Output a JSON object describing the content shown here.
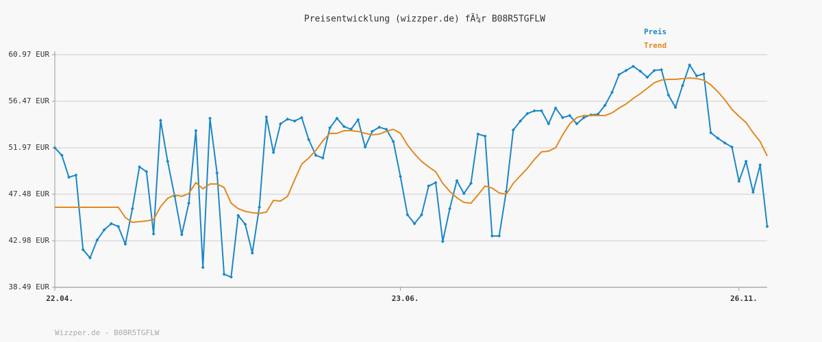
{
  "chart_data": {
    "type": "line",
    "title": "Preisentwicklung (wizzper.de) fÃ¼r B08R5TGFLW",
    "footer": "Wizzper.de - B08R5TGFLW",
    "categories": [
      "22.04.",
      null,
      null,
      null,
      null,
      null,
      null,
      null,
      null,
      null,
      null,
      null,
      null,
      null,
      null,
      null,
      null,
      null,
      null,
      null,
      null,
      null,
      null,
      null,
      null,
      null,
      null,
      null,
      null,
      null,
      null,
      null,
      null,
      null,
      null,
      null,
      null,
      null,
      null,
      null,
      null,
      null,
      null,
      null,
      null,
      null,
      null,
      null,
      null,
      "23.06.",
      null,
      null,
      null,
      null,
      null,
      null,
      null,
      null,
      null,
      null,
      null,
      null,
      null,
      null,
      null,
      null,
      null,
      null,
      null,
      null,
      null,
      null,
      null,
      null,
      null,
      null,
      null,
      null,
      null,
      null,
      null,
      null,
      null,
      null,
      null,
      null,
      null,
      null,
      null,
      null,
      null,
      null,
      null,
      null,
      null,
      null,
      null,
      "26.11.",
      null,
      null,
      null,
      null
    ],
    "series": [
      {
        "name": "Preis",
        "color": "#1a87c6",
        "markers": true,
        "values": [
          51.98,
          51.25,
          49.13,
          49.33,
          42.13,
          41.33,
          43.05,
          44.04,
          44.64,
          44.37,
          42.66,
          46.09,
          50.13,
          49.66,
          43.65,
          54.62,
          50.66,
          47.28,
          43.58,
          46.62,
          53.63,
          40.41,
          54.82,
          49.53,
          39.75,
          39.48,
          45.43,
          44.57,
          41.8,
          46.23,
          54.95,
          51.52,
          54.29,
          54.75,
          54.56,
          54.89,
          52.77,
          51.25,
          50.99,
          53.9,
          54.82,
          54.03,
          53.76,
          54.69,
          52.04,
          53.56,
          53.96,
          53.76,
          52.57,
          49.2,
          45.5,
          44.64,
          45.5,
          48.28,
          48.61,
          42.92,
          46.09,
          48.8,
          47.55,
          48.54,
          53.3,
          53.1,
          43.45,
          43.45,
          47.75,
          53.7,
          54.56,
          55.28,
          55.55,
          55.55,
          54.29,
          55.81,
          54.89,
          55.09,
          54.29,
          54.89,
          55.15,
          55.22,
          56.08,
          57.33,
          59.05,
          59.45,
          59.85,
          59.38,
          58.79,
          59.45,
          59.52,
          57.07,
          55.88,
          57.99,
          59.98,
          58.92,
          59.12,
          53.43,
          52.9,
          52.44,
          52.04,
          48.74,
          50.66,
          47.68,
          50.32,
          44.37
        ]
      },
      {
        "name": "Trend",
        "color": "#e0891e",
        "markers": false,
        "values": [
          46.23,
          46.23,
          46.23,
          46.23,
          46.23,
          46.23,
          46.23,
          46.23,
          46.23,
          46.23,
          45.23,
          44.77,
          44.84,
          44.9,
          45.04,
          46.29,
          47.09,
          47.42,
          47.28,
          47.55,
          48.61,
          48.01,
          48.47,
          48.47,
          48.14,
          46.62,
          46.09,
          45.83,
          45.7,
          45.63,
          45.76,
          46.89,
          46.82,
          47.28,
          48.87,
          50.39,
          50.99,
          51.71,
          52.64,
          53.37,
          53.37,
          53.63,
          53.63,
          53.56,
          53.37,
          53.23,
          53.3,
          53.56,
          53.76,
          53.37,
          52.24,
          51.38,
          50.66,
          50.13,
          49.66,
          48.54,
          47.75,
          47.15,
          46.69,
          46.62,
          47.42,
          48.28,
          48.08,
          47.61,
          47.48,
          48.54,
          49.27,
          49.99,
          50.85,
          51.58,
          51.65,
          51.98,
          53.23,
          54.29,
          54.89,
          55.09,
          55.09,
          55.09,
          55.09,
          55.35,
          55.81,
          56.21,
          56.74,
          57.2,
          57.73,
          58.26,
          58.52,
          58.59,
          58.59,
          58.66,
          58.72,
          58.66,
          58.52,
          58.06,
          57.4,
          56.61,
          55.68,
          55.02,
          54.42,
          53.43,
          52.57,
          51.18
        ]
      }
    ],
    "ylim": [
      38.49,
      60.97
    ],
    "yticks": [
      {
        "value": 38.49,
        "label": "38.49 EUR"
      },
      {
        "value": 42.98,
        "label": "42.98 EUR"
      },
      {
        "value": 47.48,
        "label": "47.48 EUR"
      },
      {
        "value": 51.97,
        "label": "51.97 EUR"
      },
      {
        "value": 56.47,
        "label": "56.47 EUR"
      },
      {
        "value": 60.97,
        "label": "60.97 EUR"
      }
    ],
    "grid": true
  }
}
